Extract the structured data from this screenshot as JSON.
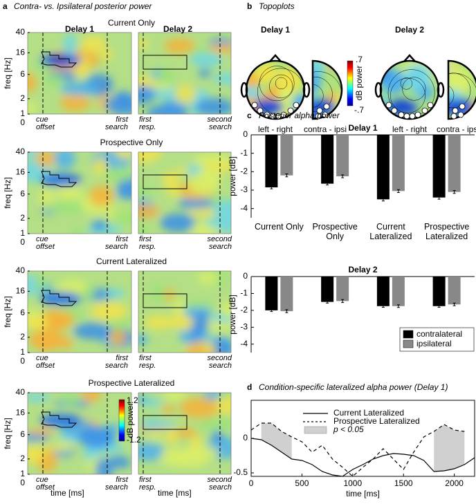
{
  "panel_a": {
    "label": "a",
    "title": "Contra- vs. Ipsilateral posterior power",
    "columns": [
      "Delay 1",
      "Delay 2"
    ],
    "rows": [
      "Current Only",
      "Prospective Only",
      "Current Lateralized",
      "Prospective Lateralized"
    ],
    "y_label": "freq [Hz]",
    "ylim": [
      1,
      40
    ],
    "yticks": [
      40,
      16,
      6,
      2,
      1
    ],
    "time_origin": 0,
    "delay1_markers": [
      "cue offset",
      "first search"
    ],
    "delay2_markers": [
      "first resp.",
      "second search"
    ],
    "x_label": "time [ms]",
    "colorbar": {
      "lim": [
        -1.2,
        1.2
      ],
      "label": "dB power"
    }
  },
  "panel_b": {
    "label": "b",
    "title": "Topoplots",
    "columns": [
      "Delay 1",
      "Delay 2"
    ],
    "captions": [
      "left - right",
      "contra - ipsi"
    ],
    "colorbar": {
      "lim": [
        {
          "value": -0.7,
          "label": "-.7"
        },
        {
          "value": 0.7,
          "label": ".7"
        }
      ],
      "label": "dB power"
    }
  },
  "chart_data": [
    {
      "type": "bar",
      "panel_label": "c",
      "panel_title": "Posterior alpha power",
      "title": "Delay 1",
      "y_label": "power [dB]",
      "categories": [
        "Current Only",
        "Prospective Only",
        "Current Lateralized",
        "Prospective Lateralized"
      ],
      "ylim": [
        -4.5,
        0
      ],
      "yticks": [
        0,
        -1,
        -2,
        -3,
        -4
      ],
      "series": [
        {
          "name": "contralateral",
          "color": "#000000",
          "values": [
            -2.85,
            -2.65,
            -3.5,
            -3.4
          ],
          "errors": [
            0.08,
            0.07,
            0.09,
            0.09
          ]
        },
        {
          "name": "ipsilateral",
          "color": "#888888",
          "values": [
            -2.2,
            -2.25,
            -3.05,
            -3.1
          ],
          "errors": [
            0.08,
            0.08,
            0.08,
            0.08
          ]
        }
      ]
    },
    {
      "type": "bar",
      "title": "Delay 2",
      "y_label": "power [dB]",
      "ylim": [
        -4.5,
        0
      ],
      "yticks": [
        0,
        -1,
        -2,
        -3,
        -4
      ],
      "legend": "lower right",
      "series": [
        {
          "name": "contralateral",
          "color": "#000000",
          "values": [
            -2.0,
            -1.5,
            -1.75,
            -1.75
          ],
          "errors": [
            0.07,
            0.07,
            0.07,
            0.07
          ]
        },
        {
          "name": "ipsilateral",
          "color": "#888888",
          "values": [
            -2.05,
            -1.45,
            -1.75,
            -1.65
          ],
          "errors": [
            0.09,
            0.09,
            0.08,
            0.08
          ]
        }
      ]
    },
    {
      "type": "line",
      "panel_label": "d",
      "title": "Condition-specific lateralized alpha power (Delay 1)",
      "x_label": "time [ms]",
      "xlim": [
        0,
        2200
      ],
      "xticks": [
        0,
        500,
        1000,
        1500,
        2000
      ],
      "ylim": [
        -0.55,
        0.55
      ],
      "yticks": [
        0,
        -0.5
      ],
      "x": [
        0,
        100,
        200,
        300,
        400,
        500,
        600,
        700,
        800,
        900,
        1000,
        1100,
        1200,
        1300,
        1400,
        1500,
        1600,
        1700,
        1800,
        1900,
        2000,
        2100,
        2200
      ],
      "series": [
        {
          "name": "Current Lateralized",
          "color": "#000000",
          "dash": false,
          "values": [
            0.0,
            -0.02,
            -0.1,
            -0.2,
            -0.3,
            -0.32,
            -0.38,
            -0.48,
            -0.53,
            -0.55,
            -0.45,
            -0.38,
            -0.3,
            -0.25,
            -0.22,
            -0.23,
            -0.25,
            -0.32,
            -0.48,
            -0.47,
            -0.44,
            -0.38,
            -0.28
          ]
        },
        {
          "name": "Prospective Lateralized",
          "color": "#000000",
          "dash": true,
          "values": [
            0.12,
            0.22,
            0.22,
            0.1,
            0.02,
            -0.05,
            -0.2,
            -0.1,
            -0.3,
            -0.42,
            -0.55,
            -0.42,
            -0.3,
            -0.15,
            -0.3,
            -0.45,
            -0.2,
            0.02,
            0.1,
            0.2,
            0.12,
            0.1,
            null
          ]
        }
      ],
      "significance": {
        "label": "p < 0.05",
        "color": "#d0d0d0",
        "ranges": [
          [
            100,
            400
          ],
          [
            1800,
            2100
          ]
        ]
      }
    }
  ]
}
